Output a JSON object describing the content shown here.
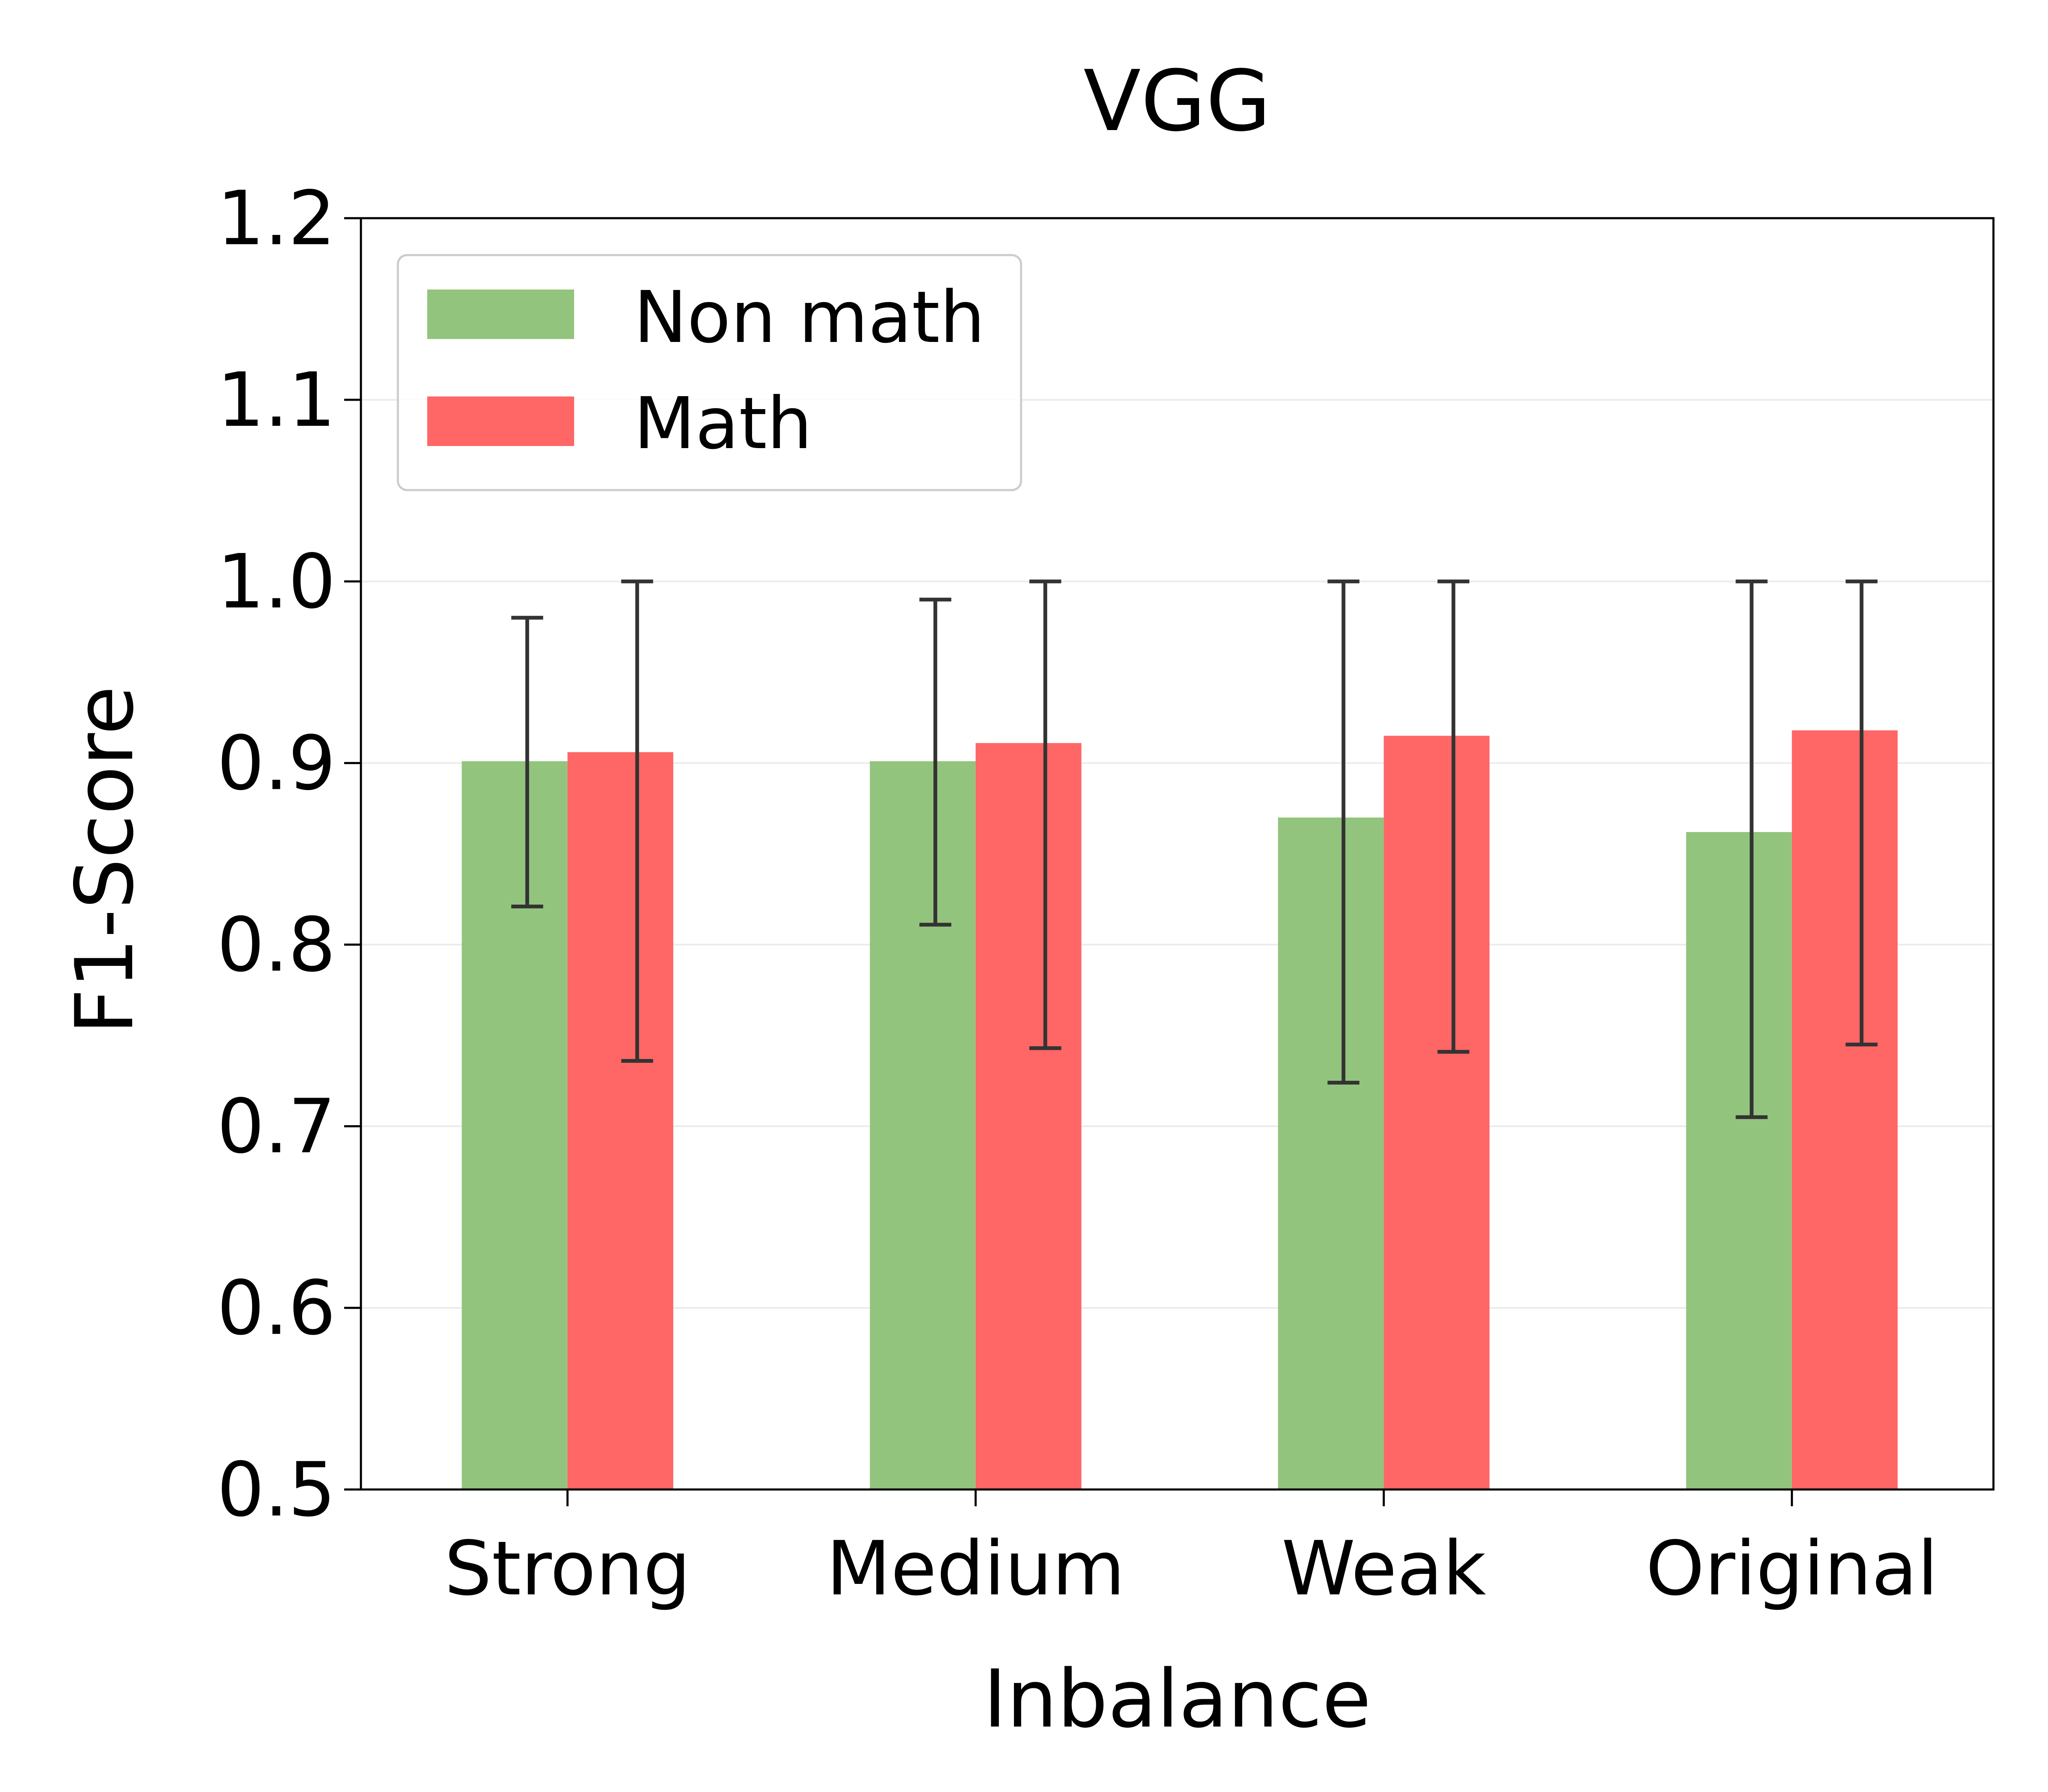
{
  "chart_data": {
    "type": "bar",
    "title": "VGG",
    "xlabel": "Inbalance",
    "ylabel": "F1-Score",
    "categories": [
      "Strong",
      "Medium",
      "Weak",
      "Original"
    ],
    "ylim": [
      0.5,
      1.2
    ],
    "yticks": [
      "0.5",
      "0.6",
      "0.7",
      "0.8",
      "0.9",
      "1.0",
      "1.1",
      "1.2"
    ],
    "grid": "horizontal",
    "legend_position": "top-left",
    "series": [
      {
        "name": "Non math",
        "color": "#93c47d",
        "values": [
          0.901,
          0.901,
          0.87,
          0.862
        ],
        "err_low": [
          0.821,
          0.811,
          0.724,
          0.705
        ],
        "err_high": [
          0.98,
          0.99,
          1.0,
          1.0
        ]
      },
      {
        "name": "Math",
        "color": "#ff6666",
        "values": [
          0.906,
          0.911,
          0.915,
          0.918
        ],
        "err_low": [
          0.736,
          0.743,
          0.741,
          0.745
        ],
        "err_high": [
          1.0,
          1.0,
          1.0,
          1.0
        ]
      }
    ]
  }
}
